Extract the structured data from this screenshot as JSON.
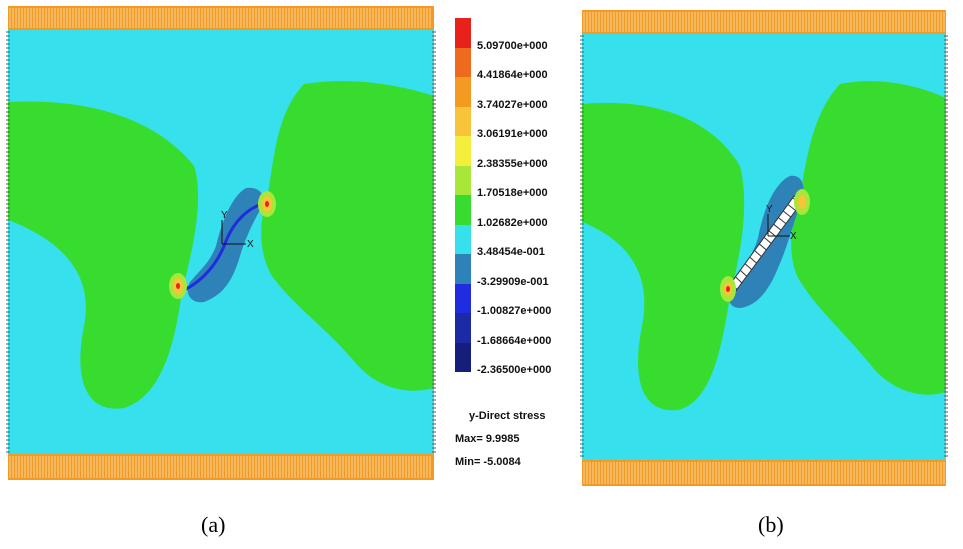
{
  "legend": {
    "levels": [
      {
        "label": "5.09700e+000",
        "color": "#e8221a"
      },
      {
        "label": "4.41864e+000",
        "color": "#ee6a1e"
      },
      {
        "label": "3.74027e+000",
        "color": "#f39a22"
      },
      {
        "label": "3.06191e+000",
        "color": "#f7c43a"
      },
      {
        "label": "2.38355e+000",
        "color": "#f4ef3c"
      },
      {
        "label": "1.70518e+000",
        "color": "#a8e63a"
      },
      {
        "label": "1.02682e+000",
        "color": "#38dc2e"
      },
      {
        "label": "3.48454e-001",
        "color": "#36e0ec"
      },
      {
        "label": "-3.29909e-001",
        "color": "#2f82b8"
      },
      {
        "label": "-1.00827e+000",
        "color": "#1f2ce0"
      },
      {
        "label": "-1.68664e+000",
        "color": "#1c2aa6"
      },
      {
        "label": "-2.36500e+000",
        "color": "#151e7a"
      }
    ],
    "title": "y-Direct stress",
    "max": "Max= 9.9985",
    "min": "Min= -5.0084"
  },
  "axis_labels": {
    "y": "Y",
    "x": "X"
  },
  "captions": {
    "a": "(a)",
    "b": "(b)"
  },
  "colors": {
    "background_field": "#36e0ec",
    "green_region": "#38dc2e",
    "crack_zone": "#2f82b8",
    "crack_line": "#1f2ce0",
    "boundary_loading": "#f39a22"
  }
}
